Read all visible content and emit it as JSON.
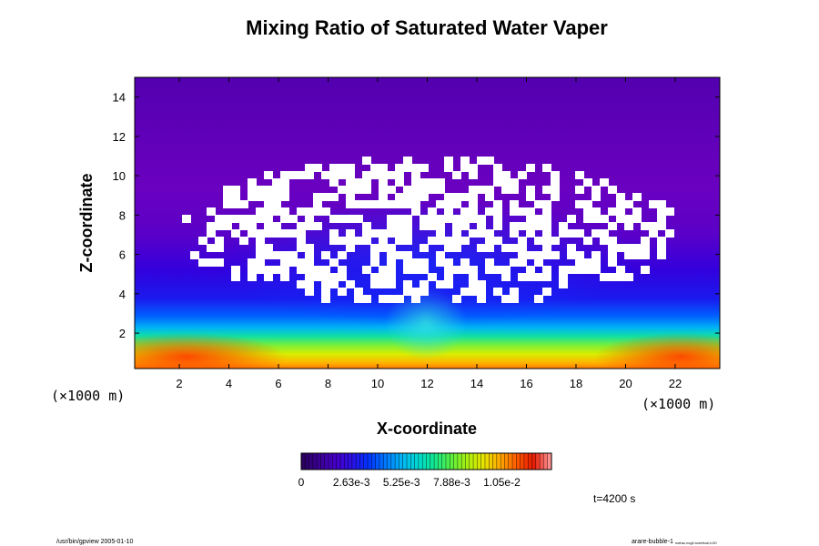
{
  "chart_data": {
    "type": "heatmap",
    "title": "Mixing Ratio of Saturated Water Vaper",
    "xlabel": "X-coordinate",
    "ylabel": "Z-coordinate",
    "x_unit": "(×1000 m)",
    "y_unit": "(×1000 m)",
    "xlim": [
      0.2,
      23.8
    ],
    "ylim": [
      0.2,
      15.0
    ],
    "x_ticks": [
      2,
      4,
      6,
      8,
      10,
      12,
      14,
      16,
      18,
      20,
      22
    ],
    "y_ticks": [
      2,
      4,
      6,
      8,
      10,
      12,
      14
    ],
    "colorbar": {
      "ticks": [
        "0",
        "2.63e-3",
        "5.25e-3",
        "7.88e-3",
        "1.05e-2"
      ],
      "min": 0,
      "max": 0.0131,
      "colors": [
        "#2a0060",
        "#3b0095",
        "#4600c8",
        "#2a10e6",
        "#0035ff",
        "#0077ff",
        "#00b4f5",
        "#00dad2",
        "#12e890",
        "#5af040",
        "#aaf010",
        "#e8e400",
        "#ffa800",
        "#ff5a00",
        "#e61800",
        "#ff9090"
      ]
    },
    "time_label": "t=4200 s",
    "grid": false
  },
  "footer": {
    "left": "/usr/bin/gpview 2005-01-10",
    "right": "arare-bubble-1",
    "right_sub": "nofrac,ncg0.svertical,t=00"
  }
}
